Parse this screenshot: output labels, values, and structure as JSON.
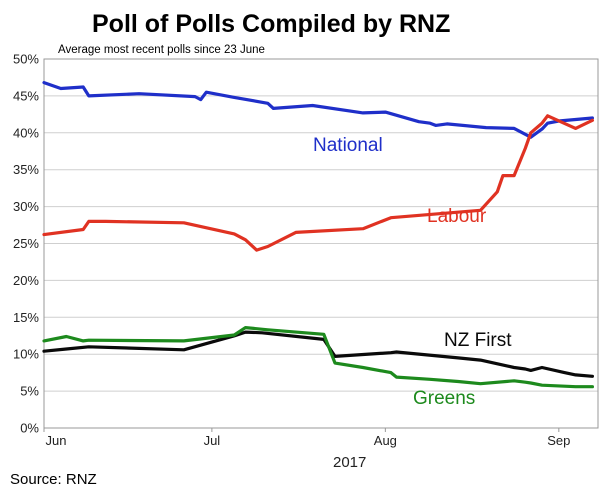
{
  "chart_data": {
    "type": "line",
    "title": "Poll of Polls Compiled by RNZ",
    "subtitle": "Average most recent polls since 23 June",
    "source": "Source: RNZ",
    "xlabel": "2017",
    "ylabel": "",
    "ylim": [
      0,
      50
    ],
    "yticks": [
      "0%",
      "5%",
      "10%",
      "15%",
      "20%",
      "25%",
      "30%",
      "35%",
      "40%",
      "45%",
      "50%"
    ],
    "xticks": [
      {
        "label": "Jun",
        "day": 0
      },
      {
        "label": "Jul",
        "day": 30
      },
      {
        "label": "Aug",
        "day": 61
      },
      {
        "label": "Sep",
        "day": 92
      }
    ],
    "x_range_days": [
      0,
      99
    ],
    "grid": true,
    "series": [
      {
        "name": "National",
        "color": "#1f2fc9",
        "x": [
          0,
          3,
          7,
          8,
          17,
          27,
          28,
          29,
          34,
          40,
          41,
          48,
          57,
          61,
          67,
          69,
          70,
          72,
          79,
          84,
          87,
          89,
          90,
          92,
          98
        ],
        "values": [
          46.8,
          46.0,
          46.2,
          45.0,
          45.3,
          44.9,
          44.5,
          45.5,
          44.8,
          44.0,
          43.3,
          43.7,
          42.7,
          42.8,
          41.5,
          41.3,
          41.0,
          41.2,
          40.7,
          40.6,
          39.4,
          40.5,
          41.3,
          41.6,
          42.0
        ]
      },
      {
        "name": "Labour",
        "color": "#e03222",
        "x": [
          0,
          7,
          8,
          11,
          25,
          34,
          36,
          38,
          40,
          45,
          57,
          62,
          78,
          81,
          82,
          84,
          86,
          87,
          89,
          90,
          95,
          98
        ],
        "values": [
          26.2,
          26.9,
          28.0,
          28.0,
          27.8,
          26.3,
          25.5,
          24.1,
          24.6,
          26.5,
          27.0,
          28.5,
          29.5,
          32.0,
          34.2,
          34.2,
          37.9,
          40.0,
          41.3,
          42.3,
          40.6,
          41.7
        ]
      },
      {
        "name": "NZ First",
        "color": "#0a0a0a",
        "x": [
          0,
          4,
          8,
          25,
          34,
          36,
          39,
          50,
          52,
          62,
          63,
          74,
          78,
          84,
          86,
          87,
          89,
          93,
          95,
          98
        ],
        "values": [
          10.4,
          10.7,
          11.0,
          10.6,
          12.5,
          13.0,
          12.9,
          12.0,
          9.7,
          10.2,
          10.3,
          9.5,
          9.2,
          8.2,
          8.0,
          7.8,
          8.2,
          7.5,
          7.2,
          7.0
        ]
      },
      {
        "name": "Greens",
        "color": "#1d8a1d",
        "x": [
          0,
          4,
          7,
          8,
          25,
          34,
          36,
          40,
          50,
          52,
          57,
          62,
          63,
          69,
          74,
          78,
          84,
          86,
          87,
          89,
          95,
          98
        ],
        "values": [
          11.8,
          12.4,
          11.8,
          11.9,
          11.8,
          12.6,
          13.6,
          13.3,
          12.7,
          8.8,
          8.2,
          7.5,
          6.9,
          6.6,
          6.3,
          6.0,
          6.4,
          6.2,
          6.1,
          5.8,
          5.6,
          5.6
        ]
      }
    ],
    "annotations": [
      {
        "text": "National",
        "series": "National"
      },
      {
        "text": "Labour",
        "series": "Labour"
      },
      {
        "text": "NZ First",
        "series": "NZ First"
      },
      {
        "text": "Greens",
        "series": "Greens"
      }
    ]
  }
}
